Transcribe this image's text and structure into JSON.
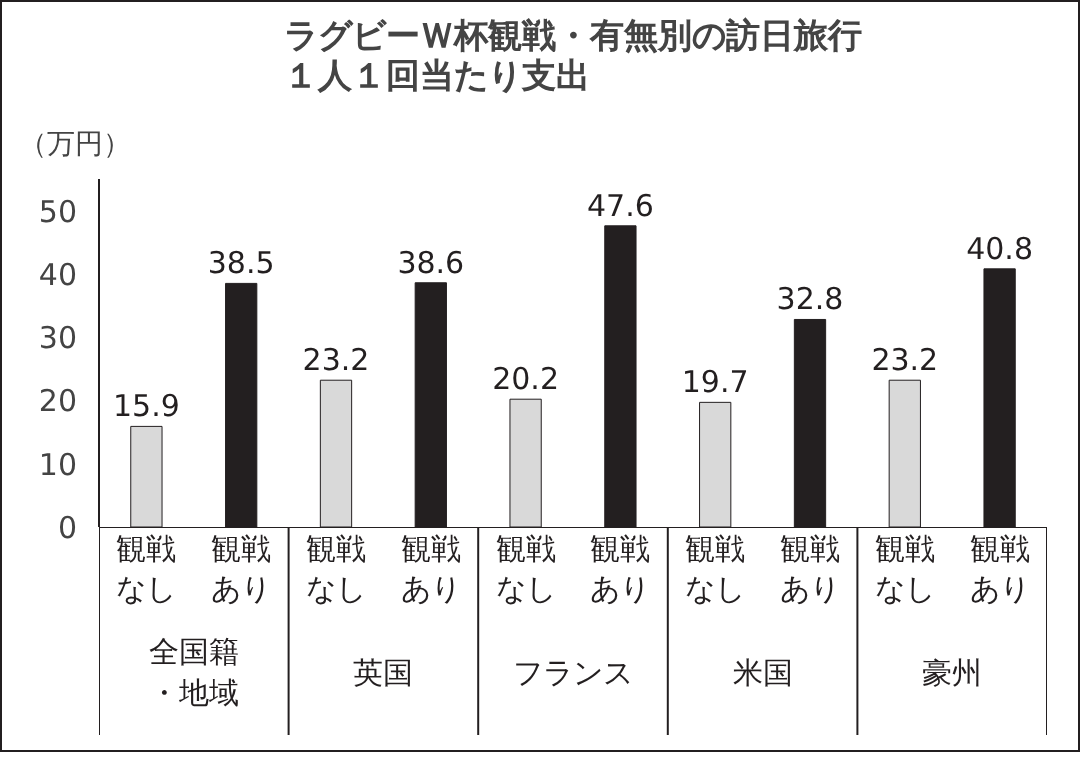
{
  "chart_data": {
    "type": "bar",
    "title": "ラグビーＷ杯観戦・有無別の訪日旅行１人１回当たり支出",
    "ylabel": "（万円）",
    "categories": [
      "全国籍・地域",
      "英国",
      "フランス",
      "米国",
      "豪州"
    ],
    "series": [
      {
        "name": "観戦なし",
        "color": "#d9d9d9",
        "values": [
          15.9,
          23.2,
          20.2,
          19.7,
          23.2
        ]
      },
      {
        "name": "観戦あり",
        "color": "#231f20",
        "values": [
          38.5,
          38.6,
          47.6,
          32.8,
          40.8
        ]
      }
    ],
    "ylim": [
      0,
      55
    ],
    "yticks": [
      0,
      10,
      20,
      30,
      40,
      50
    ],
    "grid": false,
    "data_labels": true
  }
}
